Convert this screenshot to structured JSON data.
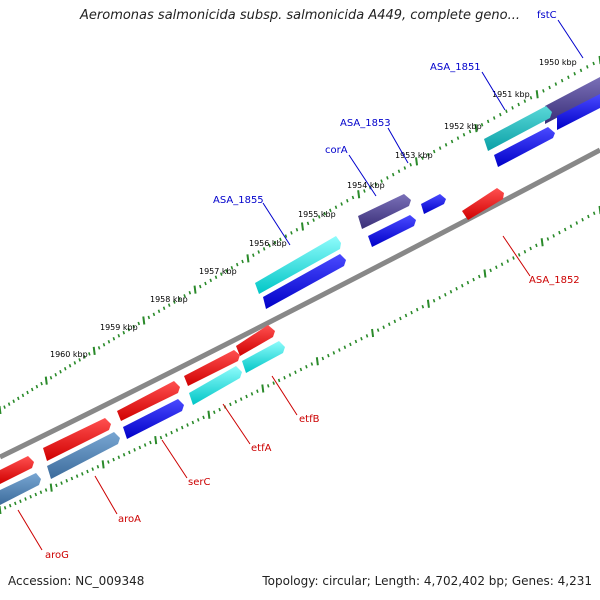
{
  "header": {
    "title": "Aeromonas salmonicida subsp. salmonicida A449, complete geno..."
  },
  "footer": {
    "accession": "Accession: NC_009348",
    "topology": "Topology: circular; Length: 4,702,402 bp; Genes: 4,231"
  },
  "colors": {
    "backbone": "#888888",
    "tick": "#2a8a2a",
    "forward_label": "#0000cc",
    "reverse_label": "#cc0000",
    "gene_blue": "#0000dd",
    "gene_cyan": "#00d0d0",
    "gene_purple": "#4a3e88",
    "gene_steel": "#4a7eb0",
    "gene_teal": "#12b8b8",
    "gene_red": "#ee0000"
  },
  "map": {
    "tick_labels": [
      "1950 kbp",
      "1951 kbp",
      "1952 kbp",
      "1953 kbp",
      "1954 kbp",
      "1955 kbp",
      "1956 kbp",
      "1957 kbp",
      "1958 kbp",
      "1959 kbp",
      "1960 kbp"
    ],
    "forward_genes": [
      {
        "name": "fstC"
      },
      {
        "name": "ASA_1851"
      },
      {
        "name": "ASA_1853"
      },
      {
        "name": "corA"
      },
      {
        "name": "ASA_1855"
      }
    ],
    "reverse_genes": [
      {
        "name": "ASA_1852"
      },
      {
        "name": "etfB"
      },
      {
        "name": "etfA"
      },
      {
        "name": "serC"
      },
      {
        "name": "aroA"
      },
      {
        "name": "aroG"
      }
    ]
  }
}
